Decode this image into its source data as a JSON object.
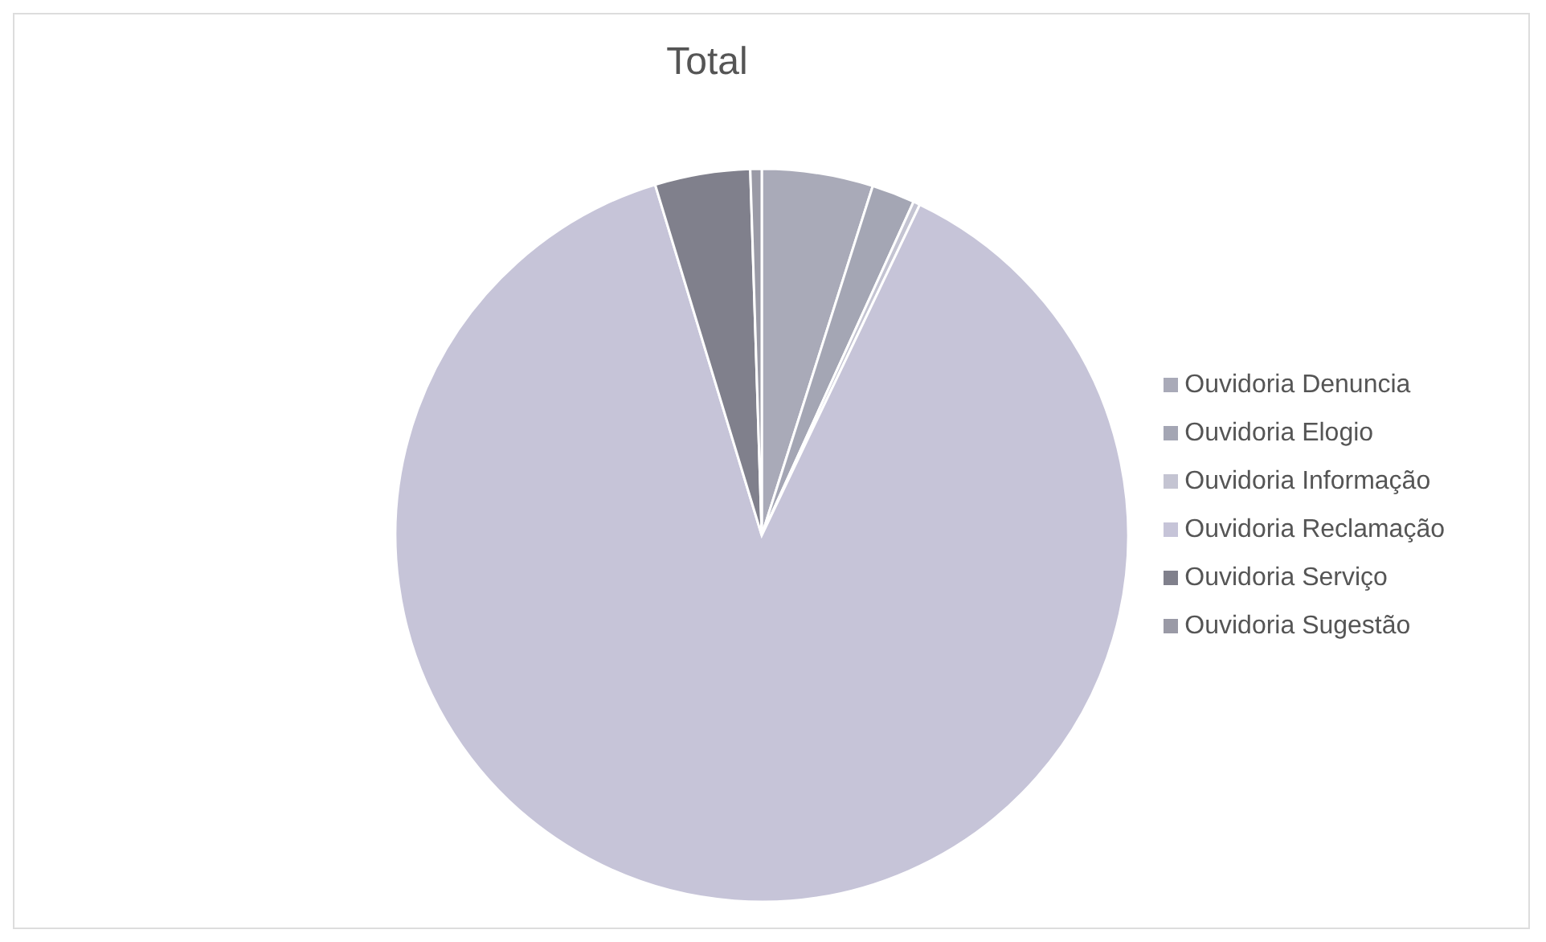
{
  "chart_data": {
    "type": "pie",
    "title": "Total",
    "categories": [
      "Ouvidoria Denuncia",
      "Ouvidoria Elogio",
      "Ouvidoria Informação",
      "Ouvidoria Reclamação",
      "Ouvidoria Serviço",
      "Ouvidoria Sugestão"
    ],
    "values": [
      4.9,
      1.9,
      0.3,
      88.2,
      4.2,
      0.5
    ],
    "colors": [
      "#a9aab8",
      "#a4a6b4",
      "#c4c4d2",
      "#c6c4d8",
      "#80808c",
      "#9a9aa6"
    ],
    "legend": "right"
  }
}
